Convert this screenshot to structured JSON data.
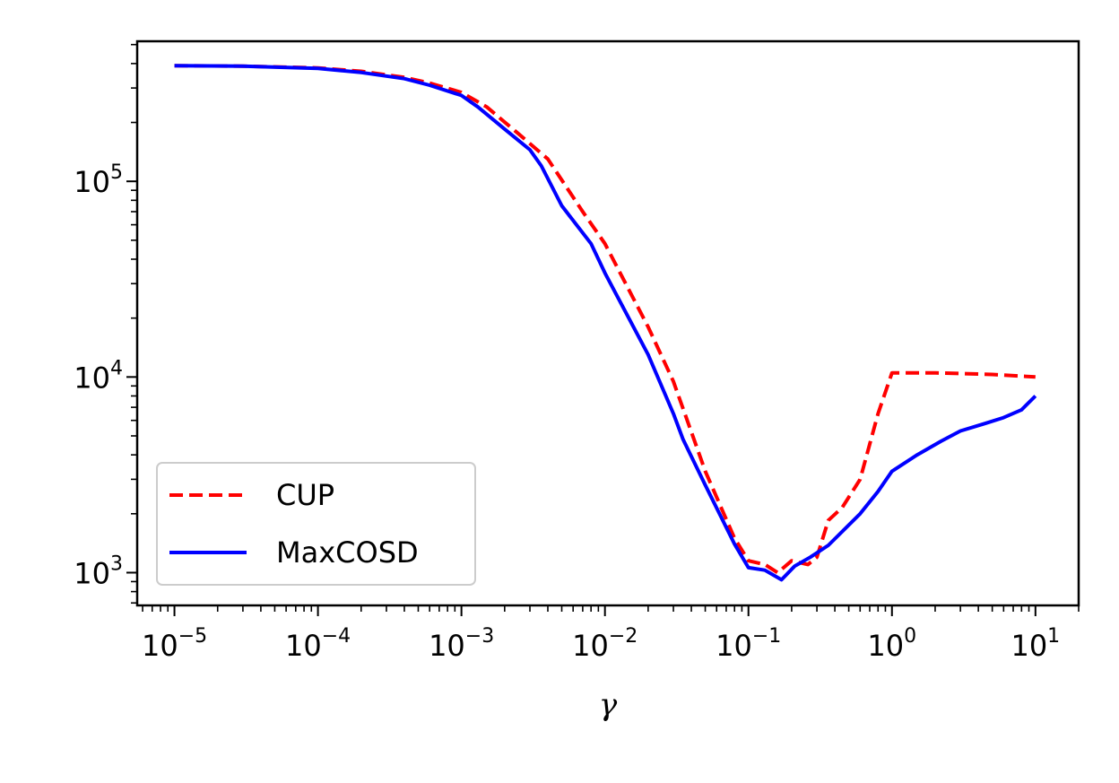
{
  "chart_data": {
    "type": "line",
    "xlabel": "γ",
    "ylabel": "",
    "xscale": "log",
    "yscale": "log",
    "xlim": [
      5.5e-06,
      20
    ],
    "ylim": [
      680,
      520000
    ],
    "grid": false,
    "legend_position": "lower-left",
    "x_ticks": [
      {
        "value": 1e-05,
        "base": "10",
        "exp": "−5"
      },
      {
        "value": 0.0001,
        "base": "10",
        "exp": "−4"
      },
      {
        "value": 0.001,
        "base": "10",
        "exp": "−3"
      },
      {
        "value": 0.01,
        "base": "10",
        "exp": "−2"
      },
      {
        "value": 0.1,
        "base": "10",
        "exp": "−1"
      },
      {
        "value": 1,
        "base": "10",
        "exp": "0"
      },
      {
        "value": 10,
        "base": "10",
        "exp": "1"
      }
    ],
    "y_ticks": [
      {
        "value": 1000,
        "base": "10",
        "exp": "3"
      },
      {
        "value": 10000,
        "base": "10",
        "exp": "4"
      },
      {
        "value": 100000,
        "base": "10",
        "exp": "5"
      }
    ],
    "series": [
      {
        "name": "CUP",
        "color": "#ff0000",
        "style": "dashed",
        "x": [
          1e-05,
          3e-05,
          0.0001,
          0.0002,
          0.0004,
          0.0006,
          0.001,
          0.0015,
          0.0025,
          0.004,
          0.007,
          0.01,
          0.02,
          0.03,
          0.05,
          0.08,
          0.1,
          0.13,
          0.16,
          0.2,
          0.26,
          0.3,
          0.36,
          0.45,
          0.6,
          0.8,
          1,
          2,
          5,
          10
        ],
        "y": [
          390000,
          388000,
          380000,
          365000,
          340000,
          318000,
          285000,
          240000,
          175000,
          130000,
          70000,
          48000,
          18000,
          9500,
          3300,
          1500,
          1150,
          1100,
          1000,
          1150,
          1100,
          1200,
          1850,
          2150,
          3000,
          6500,
          10500,
          10500,
          10300,
          10000
        ]
      },
      {
        "name": "MaxCOSD",
        "color": "#0000ff",
        "style": "solid",
        "x": [
          1e-05,
          3e-05,
          0.0001,
          0.0002,
          0.0004,
          0.0006,
          0.001,
          0.0013,
          0.002,
          0.003,
          0.0036,
          0.005,
          0.008,
          0.01,
          0.02,
          0.03,
          0.035,
          0.05,
          0.08,
          0.1,
          0.13,
          0.17,
          0.21,
          0.27,
          0.36,
          0.48,
          0.6,
          0.8,
          1,
          1.5,
          2.2,
          3,
          4.5,
          6,
          8,
          10
        ],
        "y": [
          390000,
          388000,
          378000,
          360000,
          335000,
          310000,
          275000,
          240000,
          185000,
          145000,
          120000,
          75000,
          48000,
          34000,
          13000,
          6500,
          4800,
          2800,
          1400,
          1060,
          1030,
          920,
          1080,
          1200,
          1380,
          1700,
          2000,
          2600,
          3300,
          4000,
          4700,
          5300,
          5800,
          6200,
          6800,
          8000
        ]
      }
    ]
  }
}
